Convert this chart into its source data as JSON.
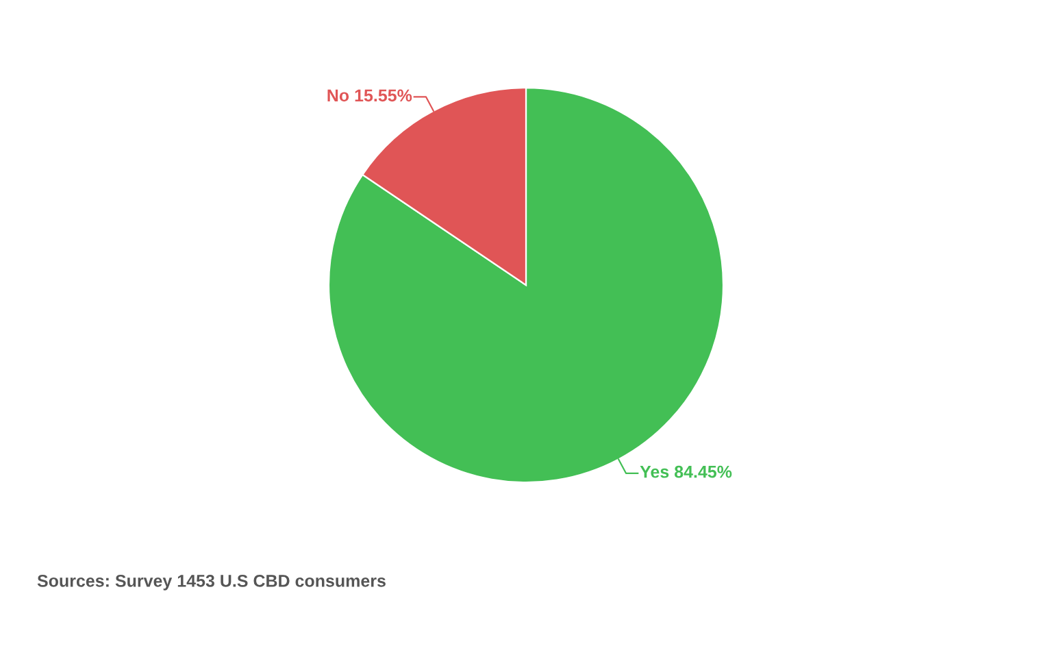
{
  "chart_data": {
    "type": "pie",
    "categories": [
      "Yes",
      "No"
    ],
    "values": [
      84.45,
      15.55
    ],
    "value_labels": [
      "84.45%",
      "15.55%"
    ],
    "colors": [
      "#43bf55",
      "#e05556"
    ],
    "annotations": [
      "Sources: Survey 1453 U.S CBD consumers"
    ]
  }
}
